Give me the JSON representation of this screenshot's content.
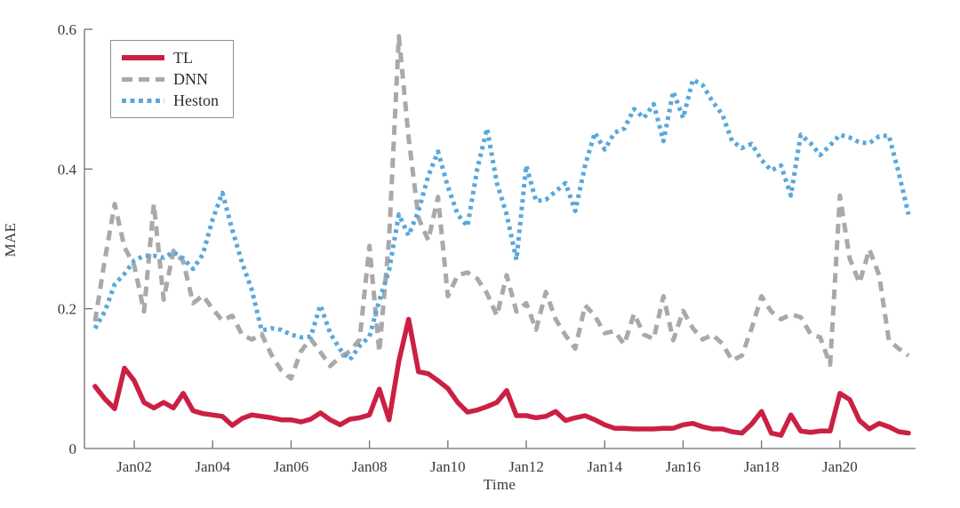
{
  "chart_data": {
    "type": "line",
    "title": "",
    "xlabel": "Time",
    "ylabel": "MAE",
    "x_unit": "quarterly",
    "x_start_year": 2001.0,
    "x_step_years": 0.25,
    "xlim_years": [
      2000.73,
      2021.93
    ],
    "ylim": [
      0,
      0.6
    ],
    "yticks": [
      0,
      0.2,
      0.4,
      0.6
    ],
    "ytick_labels": [
      "0",
      "0.2",
      "0.4",
      "0.6"
    ],
    "xticks_years": [
      2002,
      2004,
      2006,
      2008,
      2010,
      2012,
      2014,
      2016,
      2018,
      2020
    ],
    "xtick_labels": [
      "Jan02",
      "Jan04",
      "Jan06",
      "Jan08",
      "Jan10",
      "Jan12",
      "Jan14",
      "Jan16",
      "Jan18",
      "Jan20"
    ],
    "grid": false,
    "legend": {
      "position": "upper-left",
      "entries": [
        "TL",
        "DNN",
        "Heston"
      ]
    },
    "colors": {
      "axis": "#6f6f6f",
      "text": "#3a3a3a",
      "background": "#ffffff"
    },
    "series": [
      {
        "name": "TL",
        "color": "#cb2044",
        "style": "solid",
        "width": 5.5,
        "values": [
          0.089,
          0.071,
          0.057,
          0.115,
          0.097,
          0.066,
          0.058,
          0.066,
          0.058,
          0.079,
          0.054,
          0.05,
          0.048,
          0.046,
          0.033,
          0.043,
          0.048,
          0.046,
          0.044,
          0.041,
          0.041,
          0.038,
          0.042,
          0.051,
          0.041,
          0.034,
          0.042,
          0.044,
          0.048,
          0.085,
          0.041,
          0.125,
          0.185,
          0.11,
          0.107,
          0.097,
          0.086,
          0.066,
          0.052,
          0.055,
          0.06,
          0.066,
          0.083,
          0.047,
          0.047,
          0.044,
          0.046,
          0.053,
          0.04,
          0.044,
          0.047,
          0.041,
          0.034,
          0.029,
          0.029,
          0.028,
          0.028,
          0.028,
          0.029,
          0.029,
          0.034,
          0.036,
          0.031,
          0.028,
          0.028,
          0.024,
          0.022,
          0.035,
          0.053,
          0.022,
          0.019,
          0.048,
          0.025,
          0.023,
          0.025,
          0.025,
          0.079,
          0.07,
          0.04,
          0.028,
          0.036,
          0.031,
          0.024,
          0.022
        ]
      },
      {
        "name": "DNN",
        "color": "#a9a9a9",
        "style": "dashed",
        "width": 5,
        "values": [
          0.182,
          0.27,
          0.35,
          0.288,
          0.262,
          0.196,
          0.35,
          0.213,
          0.283,
          0.268,
          0.208,
          0.219,
          0.2,
          0.183,
          0.19,
          0.163,
          0.156,
          0.164,
          0.134,
          0.112,
          0.1,
          0.139,
          0.157,
          0.138,
          0.118,
          0.131,
          0.139,
          0.156,
          0.29,
          0.138,
          0.3,
          0.59,
          0.445,
          0.33,
          0.298,
          0.36,
          0.218,
          0.248,
          0.252,
          0.243,
          0.222,
          0.19,
          0.248,
          0.196,
          0.208,
          0.17,
          0.224,
          0.185,
          0.162,
          0.143,
          0.205,
          0.19,
          0.165,
          0.168,
          0.149,
          0.193,
          0.163,
          0.157,
          0.218,
          0.155,
          0.197,
          0.172,
          0.156,
          0.163,
          0.15,
          0.126,
          0.133,
          0.172,
          0.218,
          0.196,
          0.185,
          0.192,
          0.188,
          0.164,
          0.159,
          0.12,
          0.362,
          0.272,
          0.237,
          0.285,
          0.248,
          0.155,
          0.143,
          0.133
        ]
      },
      {
        "name": "Heston",
        "color": "#58a8dc",
        "style": "dotted",
        "width": 5,
        "values": [
          0.172,
          0.196,
          0.235,
          0.25,
          0.269,
          0.276,
          0.276,
          0.273,
          0.281,
          0.272,
          0.257,
          0.278,
          0.328,
          0.366,
          0.313,
          0.266,
          0.227,
          0.169,
          0.172,
          0.17,
          0.163,
          0.159,
          0.16,
          0.205,
          0.165,
          0.142,
          0.127,
          0.147,
          0.16,
          0.212,
          0.255,
          0.335,
          0.305,
          0.34,
          0.39,
          0.425,
          0.375,
          0.335,
          0.318,
          0.4,
          0.458,
          0.38,
          0.335,
          0.27,
          0.405,
          0.354,
          0.356,
          0.368,
          0.38,
          0.34,
          0.405,
          0.452,
          0.428,
          0.452,
          0.458,
          0.486,
          0.473,
          0.493,
          0.44,
          0.511,
          0.473,
          0.528,
          0.52,
          0.497,
          0.478,
          0.44,
          0.43,
          0.436,
          0.413,
          0.398,
          0.405,
          0.362,
          0.449,
          0.437,
          0.42,
          0.434,
          0.449,
          0.445,
          0.438,
          0.437,
          0.447,
          0.448,
          0.395,
          0.335
        ]
      }
    ]
  }
}
